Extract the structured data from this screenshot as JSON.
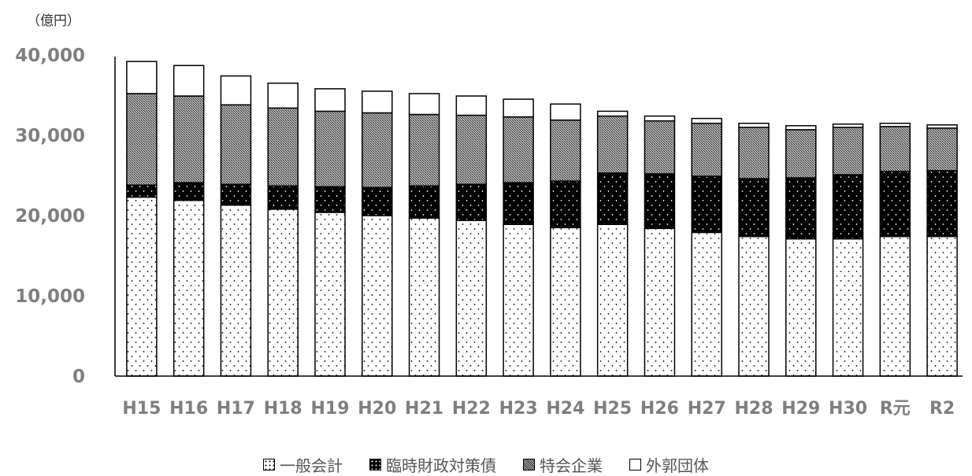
{
  "unit_label": "（億円）",
  "colors": {
    "axis": "#000000",
    "tick_text": "#7f7f7f",
    "category_text": "#7f7f7f",
    "bar_outline": "#000000"
  },
  "chart_data": {
    "type": "bar",
    "stacked": true,
    "categories": [
      "H15",
      "H16",
      "H17",
      "H18",
      "H19",
      "H20",
      "H21",
      "H22",
      "H23",
      "H24",
      "H25",
      "H26",
      "H27",
      "H28",
      "H29",
      "H30",
      "R元",
      "R2"
    ],
    "series": [
      {
        "name": "一般会計",
        "pattern": "dots-sparse",
        "values": [
          22300,
          21900,
          21300,
          20800,
          20400,
          20000,
          19700,
          19400,
          18900,
          18500,
          18900,
          18400,
          17900,
          17400,
          17100,
          17100,
          17400,
          17400
        ]
      },
      {
        "name": "臨時財政対策債",
        "pattern": "dots-dark",
        "values": [
          1500,
          2200,
          2600,
          2900,
          3200,
          3500,
          4000,
          4500,
          5200,
          5800,
          6400,
          6800,
          7000,
          7200,
          7600,
          8000,
          8100,
          8200
        ]
      },
      {
        "name": "特会企業",
        "pattern": "crosshatch",
        "values": [
          11400,
          10800,
          9900,
          9700,
          9400,
          9300,
          8900,
          8600,
          8200,
          7600,
          7100,
          6600,
          6600,
          6400,
          6000,
          5900,
          5600,
          5300
        ]
      },
      {
        "name": "外郭団体",
        "pattern": "white",
        "values": [
          4000,
          3800,
          3600,
          3100,
          2800,
          2700,
          2600,
          2400,
          2200,
          2000,
          600,
          600,
          600,
          500,
          500,
          400,
          400,
          400
        ]
      }
    ],
    "ylim": [
      0,
      40000
    ],
    "yticks": [
      0,
      10000,
      20000,
      30000,
      40000
    ],
    "ytick_labels": [
      "0",
      "10,000",
      "20,000",
      "30,000",
      "40,000"
    ],
    "grid": false,
    "legend_position": "bottom"
  }
}
